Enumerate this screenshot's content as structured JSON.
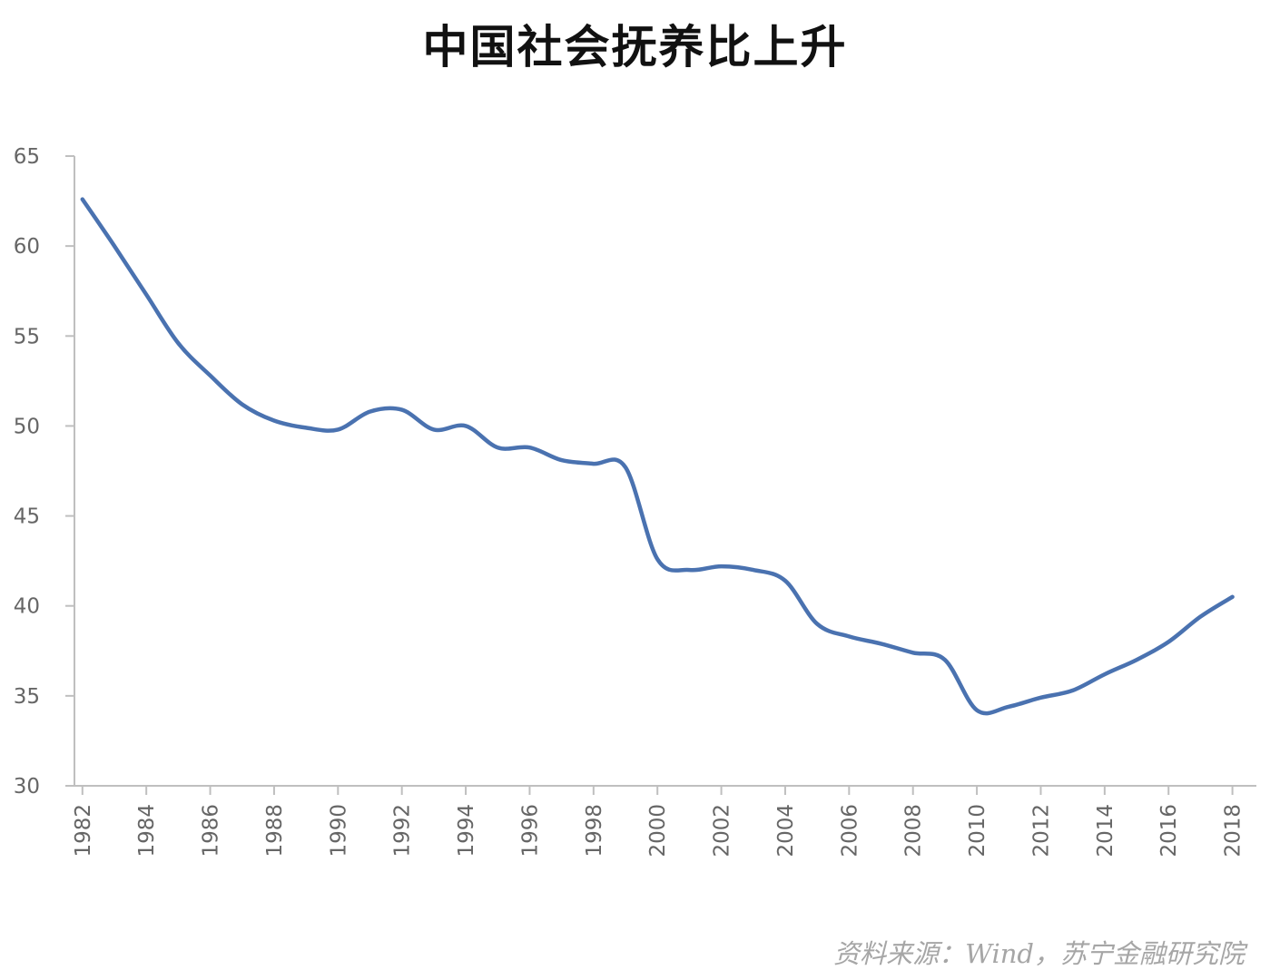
{
  "chart_data": {
    "type": "line",
    "title": "中国社会抚养比上升",
    "xlabel": "",
    "ylabel": "",
    "ylim": [
      30,
      65
    ],
    "yticks": [
      "30",
      "35",
      "40",
      "45",
      "50",
      "55",
      "60",
      "65"
    ],
    "xticks": [
      "1982",
      "1984",
      "1986",
      "1988",
      "1990",
      "1992",
      "1994",
      "1996",
      "1998",
      "2000",
      "2002",
      "2004",
      "2006",
      "2008",
      "2010",
      "2012",
      "2014",
      "2016",
      "2018"
    ],
    "grid": false,
    "legend": "none",
    "series": [
      {
        "color": "#4a72b0",
        "x": [
          1982,
          1983,
          1984,
          1985,
          1986,
          1987,
          1988,
          1989,
          1990,
          1991,
          1992,
          1993,
          1994,
          1995,
          1996,
          1997,
          1998,
          1999,
          2000,
          2001,
          2002,
          2003,
          2004,
          2005,
          2006,
          2007,
          2008,
          2009,
          2010,
          2011,
          2012,
          2013,
          2014,
          2015,
          2016,
          2017,
          2018
        ],
        "values": [
          62.6,
          60.0,
          57.3,
          54.6,
          52.8,
          51.2,
          50.3,
          49.9,
          49.8,
          50.8,
          50.9,
          49.8,
          50.0,
          48.8,
          48.8,
          48.1,
          47.9,
          47.7,
          42.6,
          42.0,
          42.2,
          42.0,
          41.4,
          39.0,
          38.3,
          37.9,
          37.4,
          37.0,
          34.2,
          34.4,
          34.9,
          35.3,
          36.2,
          37.0,
          38.0,
          39.4,
          40.5
        ]
      }
    ]
  },
  "source_note": "资料来源：Wind，苏宁金融研究院"
}
